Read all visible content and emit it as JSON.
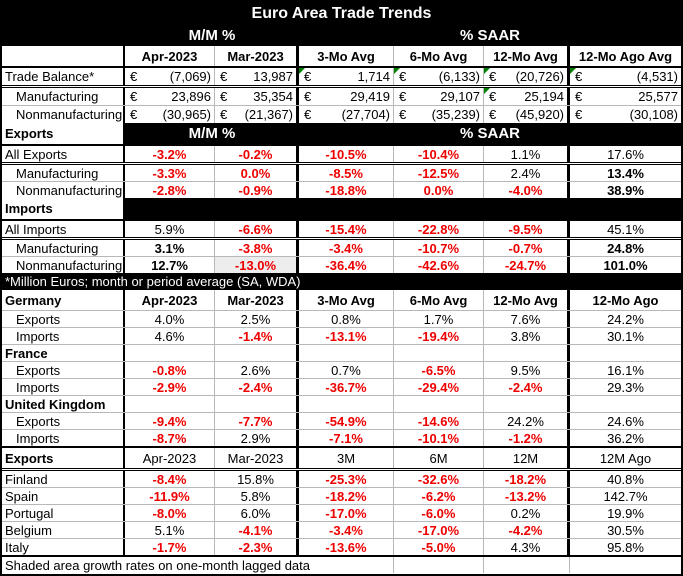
{
  "colors": {
    "header_bg": "#000000",
    "header_text": "#ffffff",
    "negative_text": "#ee0000",
    "flag_marker": "#008000",
    "shaded_cell": "#ededed"
  },
  "chart_data": {
    "type": "table",
    "title": "Euro Area Trade Trends",
    "column_groups": {
      "mm": "M/M %",
      "saar": "% SAAR"
    },
    "columns": [
      "",
      "Apr-2023",
      "Mar-2023",
      "3-Mo Avg",
      "6-Mo Avg",
      "12-Mo Avg",
      "12-Mo Ago Avg"
    ],
    "rows": [
      {
        "t": "title",
        "label": "Euro Area Trade Trends"
      },
      {
        "t": "group",
        "label": "",
        "mm": "M/M %",
        "saar": "% SAAR",
        "darkLabel": true
      },
      {
        "t": "cols",
        "bb": "black",
        "boldAll": true,
        "cells": [
          {
            "v": ""
          },
          {
            "v": "Apr-2023"
          },
          {
            "v": "Mar-2023"
          },
          {
            "v": "3-Mo Avg"
          },
          {
            "v": "6-Mo Avg"
          },
          {
            "v": "12-Mo Avg"
          },
          {
            "v": "12-Mo Ago Avg"
          }
        ]
      },
      {
        "t": "euro",
        "label": "Trade Balance*",
        "ind": 0,
        "bb": "double",
        "cells": [
          {
            "cur": "€",
            "v": "(7,069)"
          },
          {
            "cur": "€",
            "v": "13,987"
          },
          {
            "cur": "€",
            "v": "1,714",
            "flag": true
          },
          {
            "cur": "€",
            "v": "(6,133)",
            "flag": true
          },
          {
            "cur": "€",
            "v": "(20,726)",
            "flag": true
          },
          {
            "cur": "€",
            "v": "(4,531)",
            "flag": true
          }
        ]
      },
      {
        "t": "euro",
        "label": "Manufacturing",
        "ind": 1,
        "bb": "gray",
        "cells": [
          {
            "cur": "€",
            "v": "23,896"
          },
          {
            "cur": "€",
            "v": "35,354"
          },
          {
            "cur": "€",
            "v": "29,419"
          },
          {
            "cur": "€",
            "v": "29,107"
          },
          {
            "cur": "€",
            "v": "25,194",
            "flag": true
          },
          {
            "cur": "€",
            "v": "25,577"
          }
        ]
      },
      {
        "t": "euro",
        "label": "Nonmanufacturing",
        "ind": 1,
        "cells": [
          {
            "cur": "€",
            "v": "(30,965)"
          },
          {
            "cur": "€",
            "v": "(21,367)"
          },
          {
            "cur": "€",
            "v": "(27,704)"
          },
          {
            "cur": "€",
            "v": "(35,239)"
          },
          {
            "cur": "€",
            "v": "(45,920)"
          },
          {
            "cur": "€",
            "v": "(30,108)"
          }
        ]
      },
      {
        "t": "group",
        "label": "Exports",
        "mm": "M/M %",
        "saar": "% SAAR",
        "bb": "black"
      },
      {
        "t": "data",
        "label": "All Exports",
        "ind": 0,
        "bb": "double",
        "cells": [
          {
            "v": "-3.2%",
            "neg": true
          },
          {
            "v": "-0.2%",
            "neg": true
          },
          {
            "v": "-10.5%",
            "neg": true
          },
          {
            "v": "-10.4%",
            "neg": true
          },
          {
            "v": "1.1%"
          },
          {
            "v": "17.6%"
          }
        ]
      },
      {
        "t": "data",
        "label": "Manufacturing",
        "ind": 1,
        "bb": "gray",
        "cells": [
          {
            "v": "-3.3%",
            "neg": true
          },
          {
            "v": "0.0%",
            "neg": true
          },
          {
            "v": "-8.5%",
            "neg": true
          },
          {
            "v": "-12.5%",
            "neg": true
          },
          {
            "v": "2.4%"
          },
          {
            "v": "13.4%",
            "bold": true
          }
        ]
      },
      {
        "t": "data",
        "label": "Nonmanufacturing",
        "ind": 1,
        "cells": [
          {
            "v": "-2.8%",
            "neg": true
          },
          {
            "v": "-0.9%",
            "neg": true
          },
          {
            "v": "-18.8%",
            "neg": true
          },
          {
            "v": "0.0%",
            "neg": true
          },
          {
            "v": "-4.0%",
            "neg": true
          },
          {
            "v": "38.9%",
            "bold": true
          }
        ]
      },
      {
        "t": "group",
        "label": "Imports",
        "mm": "",
        "saar": "",
        "bb": "black"
      },
      {
        "t": "data",
        "label": "All Imports",
        "ind": 0,
        "bb": "double",
        "cells": [
          {
            "v": "5.9%"
          },
          {
            "v": "-6.6%",
            "neg": true
          },
          {
            "v": "-15.4%",
            "neg": true
          },
          {
            "v": "-22.8%",
            "neg": true
          },
          {
            "v": "-9.5%",
            "neg": true
          },
          {
            "v": "45.1%"
          }
        ]
      },
      {
        "t": "data",
        "label": "Manufacturing",
        "ind": 1,
        "bb": "gray",
        "cells": [
          {
            "v": "3.1%",
            "bold": true
          },
          {
            "v": "-3.8%",
            "neg": true
          },
          {
            "v": "-3.4%",
            "neg": true
          },
          {
            "v": "-10.7%",
            "neg": true
          },
          {
            "v": "-0.7%",
            "neg": true
          },
          {
            "v": "24.8%",
            "bold": true
          }
        ]
      },
      {
        "t": "data",
        "label": "Nonmanufacturing",
        "ind": 1,
        "cells": [
          {
            "v": "12.7%",
            "bold": true
          },
          {
            "v": "-13.0%",
            "neg": true,
            "shade": true
          },
          {
            "v": "-36.4%",
            "neg": true
          },
          {
            "v": "-42.6%",
            "neg": true
          },
          {
            "v": "-24.7%",
            "neg": true
          },
          {
            "v": "101.0%",
            "bold": true
          }
        ]
      },
      {
        "t": "note",
        "label": "*Million Euros; month or period average (SA, WDA)"
      },
      {
        "t": "cols",
        "bb": "gray",
        "boldAll": true,
        "cells": [
          {
            "v": "Germany"
          },
          {
            "v": "Apr-2023"
          },
          {
            "v": "Mar-2023"
          },
          {
            "v": "3-Mo Avg"
          },
          {
            "v": "6-Mo Avg"
          },
          {
            "v": "12-Mo Avg"
          },
          {
            "v": "12-Mo Ago"
          }
        ]
      },
      {
        "t": "data",
        "label": "Exports",
        "ind": 1,
        "bb": "gray",
        "cells": [
          {
            "v": "4.0%"
          },
          {
            "v": "2.5%"
          },
          {
            "v": "0.8%"
          },
          {
            "v": "1.7%"
          },
          {
            "v": "7.6%"
          },
          {
            "v": "24.2%"
          }
        ]
      },
      {
        "t": "data",
        "label": "Imports",
        "ind": 1,
        "bb": "gray",
        "cells": [
          {
            "v": "4.6%"
          },
          {
            "v": "-1.4%",
            "neg": true
          },
          {
            "v": "-13.1%",
            "neg": true
          },
          {
            "v": "-19.4%",
            "neg": true
          },
          {
            "v": "3.8%"
          },
          {
            "v": "30.1%"
          }
        ]
      },
      {
        "t": "sub",
        "label": "France",
        "bb": "gray"
      },
      {
        "t": "data",
        "label": "Exports",
        "ind": 1,
        "bb": "gray",
        "cells": [
          {
            "v": "-0.8%",
            "neg": true
          },
          {
            "v": "2.6%"
          },
          {
            "v": "0.7%"
          },
          {
            "v": "-6.5%",
            "neg": true
          },
          {
            "v": "9.5%"
          },
          {
            "v": "16.1%"
          }
        ]
      },
      {
        "t": "data",
        "label": "Imports",
        "ind": 1,
        "bb": "gray",
        "cells": [
          {
            "v": "-2.9%",
            "neg": true
          },
          {
            "v": "-2.4%",
            "neg": true
          },
          {
            "v": "-36.7%",
            "neg": true
          },
          {
            "v": "-29.4%",
            "neg": true
          },
          {
            "v": "-2.4%",
            "neg": true
          },
          {
            "v": "29.3%"
          }
        ]
      },
      {
        "t": "sub",
        "label": "United Kingdom",
        "bb": "gray"
      },
      {
        "t": "data",
        "label": "Exports",
        "ind": 1,
        "bb": "gray",
        "cells": [
          {
            "v": "-9.4%",
            "neg": true
          },
          {
            "v": "-7.7%",
            "neg": true
          },
          {
            "v": "-54.9%",
            "neg": true
          },
          {
            "v": "-14.6%",
            "neg": true
          },
          {
            "v": "24.2%"
          },
          {
            "v": "24.6%"
          }
        ]
      },
      {
        "t": "data",
        "label": "Imports",
        "ind": 1,
        "bb": "black",
        "cells": [
          {
            "v": "-8.7%",
            "neg": true
          },
          {
            "v": "2.9%"
          },
          {
            "v": "-7.1%",
            "neg": true
          },
          {
            "v": "-10.1%",
            "neg": true
          },
          {
            "v": "-1.2%",
            "neg": true
          },
          {
            "v": "36.2%"
          }
        ]
      },
      {
        "t": "cols",
        "bb": "double",
        "boldLabel": true,
        "cells": [
          {
            "v": "Exports"
          },
          {
            "v": "Apr-2023"
          },
          {
            "v": "Mar-2023"
          },
          {
            "v": "3M"
          },
          {
            "v": "6M"
          },
          {
            "v": "12M"
          },
          {
            "v": "12M Ago"
          }
        ]
      },
      {
        "t": "data",
        "label": "Finland",
        "ind": 0,
        "bb": "gray",
        "cells": [
          {
            "v": "-8.4%",
            "neg": true
          },
          {
            "v": "15.8%"
          },
          {
            "v": "-25.3%",
            "neg": true
          },
          {
            "v": "-32.6%",
            "neg": true,
            "flag": true
          },
          {
            "v": "-18.2%",
            "neg": true,
            "flag": true
          },
          {
            "v": "40.8%",
            "flag": true
          }
        ]
      },
      {
        "t": "data",
        "label": "Spain",
        "ind": 0,
        "bb": "gray",
        "cells": [
          {
            "v": "-11.9%",
            "neg": true
          },
          {
            "v": "5.8%"
          },
          {
            "v": "-18.2%",
            "neg": true
          },
          {
            "v": "-6.2%",
            "neg": true
          },
          {
            "v": "-13.2%",
            "neg": true
          },
          {
            "v": "142.7%"
          }
        ]
      },
      {
        "t": "data",
        "label": "Portugal",
        "ind": 0,
        "bb": "gray",
        "cells": [
          {
            "v": "-8.0%",
            "neg": true
          },
          {
            "v": "6.0%"
          },
          {
            "v": "-17.0%",
            "neg": true
          },
          {
            "v": "-6.0%",
            "neg": true
          },
          {
            "v": "0.2%"
          },
          {
            "v": "19.9%"
          }
        ]
      },
      {
        "t": "data",
        "label": "Belgium",
        "ind": 0,
        "bb": "gray",
        "cells": [
          {
            "v": "5.1%"
          },
          {
            "v": "-4.1%",
            "neg": true
          },
          {
            "v": "-3.4%",
            "neg": true
          },
          {
            "v": "-17.0%",
            "neg": true
          },
          {
            "v": "-4.2%",
            "neg": true
          },
          {
            "v": "30.5%"
          }
        ]
      },
      {
        "t": "data",
        "label": "Italy",
        "ind": 0,
        "bb": "black",
        "cells": [
          {
            "v": "-1.7%",
            "neg": true
          },
          {
            "v": "-2.3%",
            "neg": true
          },
          {
            "v": "-13.6%",
            "neg": true
          },
          {
            "v": "-5.0%",
            "neg": true
          },
          {
            "v": "4.3%"
          },
          {
            "v": "95.8%"
          }
        ]
      },
      {
        "t": "foot",
        "label": "Shaded area growth rates on one-month lagged data"
      }
    ]
  }
}
